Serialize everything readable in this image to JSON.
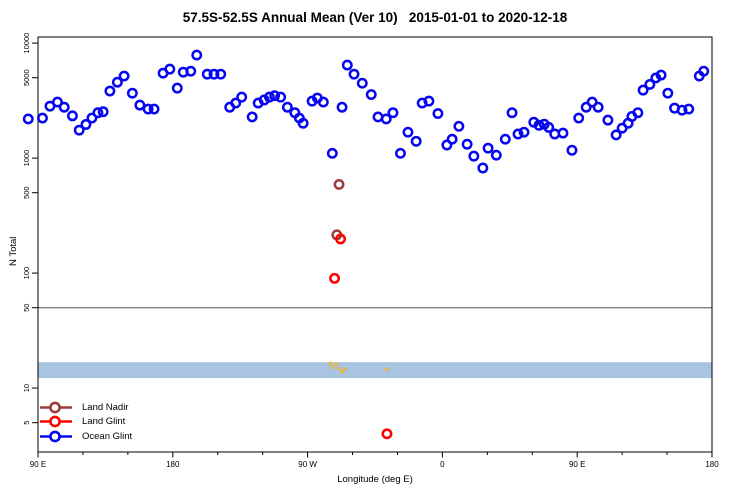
{
  "page": {
    "background": "#ffffff"
  },
  "chart_data": {
    "type": "scatter",
    "title": "57.5S-52.5S Annual Mean (Ver 10)   2015-01-01 to 2020-12-18",
    "xlabel": "Longitude (deg E)",
    "ylabel": "N Total",
    "x_axis": {
      "note": "x values are degrees along the axis from the left edge; axis starts at 90E and wraps eastward through 180, 90W, 0, 90E to 180 (450 deg total)",
      "range_deg": [
        0,
        450
      ],
      "major_ticks_deg": [
        0,
        90,
        180,
        270,
        360,
        450
      ],
      "major_tick_labels": [
        "90 E",
        "180",
        "90 W",
        "0",
        "90 E",
        "180"
      ],
      "minor_tick_step_deg": 30
    },
    "y_axis": {
      "scale": "log",
      "range": [
        2.78,
        11300
      ],
      "tick_values": [
        10000,
        5000,
        1000,
        500,
        100,
        50,
        10,
        5
      ],
      "tick_labels": [
        "10000",
        "5000",
        "1000",
        "500",
        "100",
        "50",
        "10",
        "5"
      ]
    },
    "reference_line": {
      "value": 50,
      "color": "#808080"
    },
    "band": {
      "from": 12.2,
      "to": 16.8,
      "color": "#A9C4E1"
    },
    "flag_marks": {
      "color": "#E3B64E",
      "points": [
        [
          195,
          16.4
        ],
        [
          197,
          15.2
        ],
        [
          199,
          16.2
        ],
        [
          201,
          14.8
        ],
        [
          203,
          13.9
        ],
        [
          205,
          14.5
        ],
        [
          233,
          14.5
        ]
      ]
    },
    "series": [
      {
        "name": "Land Nadir",
        "color": "#9E3B3B",
        "points": [
          [
            201,
            590
          ],
          [
            199.5,
            215
          ]
        ]
      },
      {
        "name": "Land Glint",
        "color": "#FF0000",
        "points": [
          [
            202,
            198
          ],
          [
            198,
            90
          ],
          [
            233,
            4
          ]
        ]
      },
      {
        "name": "Ocean Glint",
        "color": "#0606F0",
        "points": [
          [
            -6.5,
            2190
          ],
          [
            3,
            2230
          ],
          [
            8,
            2830
          ],
          [
            13,
            3070
          ],
          [
            17.5,
            2770
          ],
          [
            23,
            2330
          ],
          [
            27.5,
            1750
          ],
          [
            32,
            1960
          ],
          [
            36,
            2230
          ],
          [
            40,
            2480
          ],
          [
            43.5,
            2530
          ],
          [
            48,
            3830
          ],
          [
            53,
            4570
          ],
          [
            57.5,
            5170
          ],
          [
            63,
            3670
          ],
          [
            68,
            2890
          ],
          [
            73.5,
            2670
          ],
          [
            77.5,
            2670
          ],
          [
            83.5,
            5480
          ],
          [
            88,
            5940
          ],
          [
            93,
            4060
          ],
          [
            97,
            5590
          ],
          [
            102,
            5700
          ],
          [
            106,
            7870
          ],
          [
            113,
            5370
          ],
          [
            117.5,
            5370
          ],
          [
            122,
            5370
          ],
          [
            128,
            2770
          ],
          [
            132,
            3010
          ],
          [
            136,
            3390
          ],
          [
            143,
            2280
          ],
          [
            147,
            3010
          ],
          [
            151,
            3200
          ],
          [
            154.5,
            3390
          ],
          [
            158,
            3490
          ],
          [
            162,
            3390
          ],
          [
            166.5,
            2770
          ],
          [
            171.5,
            2480
          ],
          [
            174.5,
            2230
          ],
          [
            177,
            2010
          ],
          [
            183,
            3130
          ],
          [
            186.5,
            3330
          ],
          [
            190.5,
            3070
          ],
          [
            196.5,
            1100
          ],
          [
            203,
            2770
          ],
          [
            206.5,
            6440
          ],
          [
            211,
            5370
          ],
          [
            216.5,
            4480
          ],
          [
            222.5,
            3570
          ],
          [
            227,
            2280
          ],
          [
            232.5,
            2190
          ],
          [
            237,
            2480
          ],
          [
            242,
            1100
          ],
          [
            247,
            1680
          ],
          [
            252.5,
            1400
          ],
          [
            256.5,
            3010
          ],
          [
            261,
            3130
          ],
          [
            267,
            2440
          ],
          [
            273,
            1300
          ],
          [
            276.5,
            1460
          ],
          [
            281,
            1890
          ],
          [
            286.5,
            1320
          ],
          [
            291,
            1040
          ],
          [
            297,
            820
          ],
          [
            300.5,
            1220
          ],
          [
            306,
            1060
          ],
          [
            312,
            1460
          ],
          [
            316.5,
            2480
          ],
          [
            320.5,
            1620
          ],
          [
            324.5,
            1680
          ],
          [
            331,
            2050
          ],
          [
            334.5,
            1930
          ],
          [
            338,
            1970
          ],
          [
            341,
            1850
          ],
          [
            345,
            1620
          ],
          [
            350.5,
            1650
          ],
          [
            356.5,
            1170
          ],
          [
            361,
            2230
          ],
          [
            366,
            2770
          ],
          [
            370,
            3070
          ],
          [
            374,
            2770
          ],
          [
            380.5,
            2140
          ],
          [
            386,
            1590
          ],
          [
            390,
            1820
          ],
          [
            394,
            2010
          ],
          [
            396.5,
            2300
          ],
          [
            400.5,
            2480
          ],
          [
            404,
            3900
          ],
          [
            408.5,
            4370
          ],
          [
            412.5,
            4980
          ],
          [
            416,
            5270
          ],
          [
            420.5,
            3670
          ],
          [
            425,
            2720
          ],
          [
            430,
            2610
          ],
          [
            434.5,
            2670
          ],
          [
            441.5,
            5170
          ],
          [
            444.5,
            5700
          ]
        ]
      }
    ],
    "legend_position": "inside-bottom-left",
    "marker_style": "open-circle"
  }
}
